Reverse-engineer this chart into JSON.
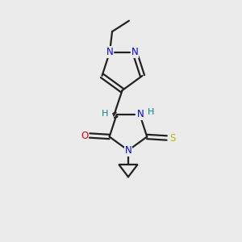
{
  "background_color": "#ebebeb",
  "atom_colors": {
    "C": "#222222",
    "N": "#0000ee",
    "O": "#ee0000",
    "S": "#bbbb00",
    "H": "#008888"
  },
  "figsize": [
    3.0,
    3.0
  ],
  "dpi": 100
}
